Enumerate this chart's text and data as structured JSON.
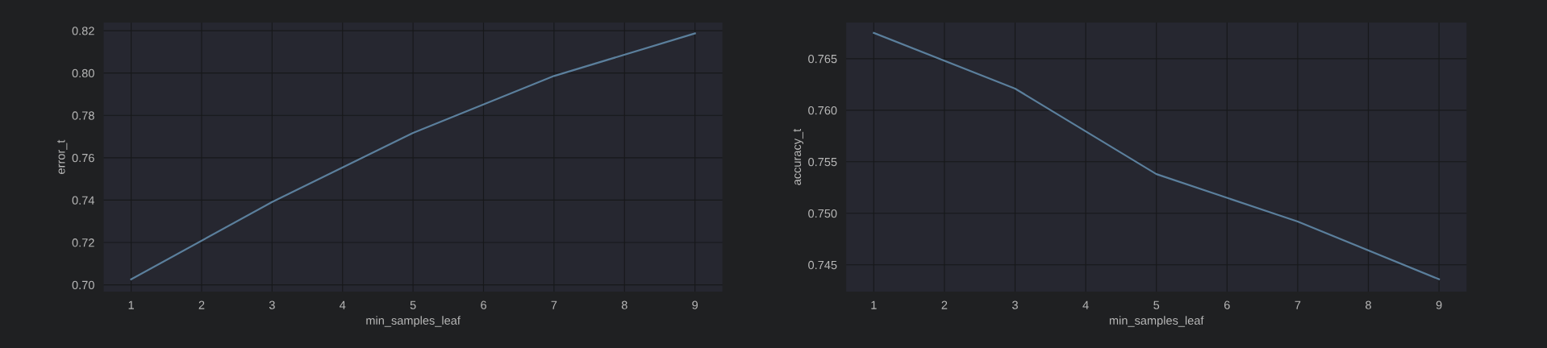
{
  "chart_data": [
    {
      "type": "line",
      "xlabel": "min_samples_leaf",
      "ylabel": "error_t",
      "x": [
        1,
        3,
        5,
        7,
        9
      ],
      "series": [
        {
          "color": "#5b7f9c",
          "values": [
            0.7026,
            0.7391,
            0.7717,
            0.7986,
            0.8187
          ]
        }
      ],
      "xlim": [
        0.61,
        9.39
      ],
      "xticks": [
        1,
        2,
        3,
        4,
        5,
        6,
        7,
        8,
        9
      ],
      "ylim": [
        0.6968,
        0.8238
      ],
      "yticks": [
        {
          "value": 0.7,
          "label": "0.70"
        },
        {
          "value": 0.72,
          "label": "0.72"
        },
        {
          "value": 0.74,
          "label": "0.74"
        },
        {
          "value": 0.76,
          "label": "0.76"
        },
        {
          "value": 0.78,
          "label": "0.78"
        },
        {
          "value": 0.8,
          "label": "0.80"
        },
        {
          "value": 0.82,
          "label": "0.82"
        }
      ],
      "grid": true
    },
    {
      "type": "line",
      "xlabel": "min_samples_leaf",
      "ylabel": "accuracy_t",
      "x": [
        1,
        3,
        5,
        7,
        9
      ],
      "series": [
        {
          "color": "#5b7f9c",
          "values": [
            0.7675,
            0.7621,
            0.7538,
            0.7492,
            0.7436
          ]
        }
      ],
      "xlim": [
        0.61,
        9.39
      ],
      "xticks": [
        1,
        2,
        3,
        4,
        5,
        6,
        7,
        8,
        9
      ],
      "ylim": [
        0.7424,
        0.7685
      ],
      "yticks": [
        {
          "value": 0.745,
          "label": "0.745"
        },
        {
          "value": 0.75,
          "label": "0.750"
        },
        {
          "value": 0.755,
          "label": "0.755"
        },
        {
          "value": 0.76,
          "label": "0.760"
        },
        {
          "value": 0.765,
          "label": "0.765"
        }
      ],
      "grid": true
    }
  ]
}
